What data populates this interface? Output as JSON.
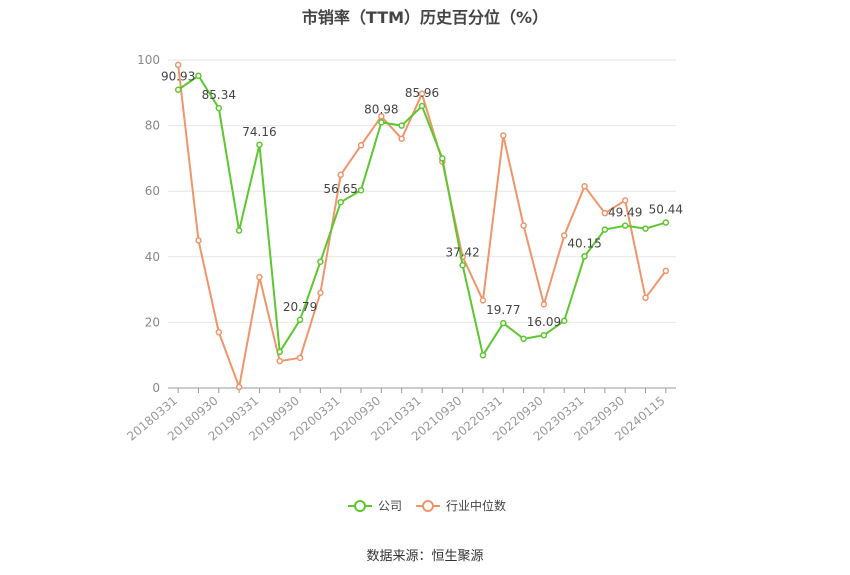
{
  "chart_data": {
    "type": "line",
    "title": "市销率（TTM）历史百分位（%）",
    "x": [
      "20180331",
      "20180630",
      "20180930",
      "20181231",
      "20190331",
      "20190630",
      "20190930",
      "20191231",
      "20200331",
      "20200630",
      "20200930",
      "20201231",
      "20210331",
      "20210630",
      "20210930",
      "20211231",
      "20220331",
      "20220630",
      "20220930",
      "20221231",
      "20230331",
      "20230630",
      "20230930",
      "20231231",
      "20240115"
    ],
    "x_tick_labels": [
      "20180331",
      "20180930",
      "20190331",
      "20190930",
      "20200331",
      "20200930",
      "20210331",
      "20210930",
      "20220331",
      "20220930",
      "20230331",
      "20230930",
      "20240115"
    ],
    "y_ticks": [
      0,
      20,
      40,
      60,
      80,
      100
    ],
    "ylim": [
      0,
      100
    ],
    "grid": true,
    "legend_position": "bottom",
    "series": [
      {
        "name": "公司",
        "color": "#5cc72e",
        "values": [
          90.93,
          95.2,
          85.34,
          48.0,
          74.16,
          11.0,
          20.79,
          38.5,
          56.65,
          60.3,
          80.98,
          80.0,
          85.96,
          70.0,
          37.42,
          10.0,
          19.77,
          15.0,
          16.09,
          20.5,
          40.15,
          48.3,
          49.49,
          48.6,
          50.44
        ],
        "labels": {
          "0": "90.93",
          "2": "85.34",
          "4": "74.16",
          "6": "20.79",
          "8": "56.65",
          "10": "80.98",
          "12": "85.96",
          "14": "37.42",
          "16": "19.77",
          "18": "16.09",
          "20": "40.15",
          "22": "49.49",
          "24": "50.44"
        }
      },
      {
        "name": "行业中位数",
        "color": "#f0956b",
        "values": [
          98.5,
          45.0,
          17.0,
          0.3,
          33.8,
          8.2,
          9.2,
          29.0,
          65.0,
          74.0,
          82.8,
          76.0,
          89.7,
          69.0,
          40.0,
          26.7,
          77.0,
          49.5,
          25.5,
          46.5,
          61.5,
          53.3,
          57.2,
          27.5,
          35.7
        ]
      }
    ]
  },
  "source_text": "数据来源：恒生聚源"
}
